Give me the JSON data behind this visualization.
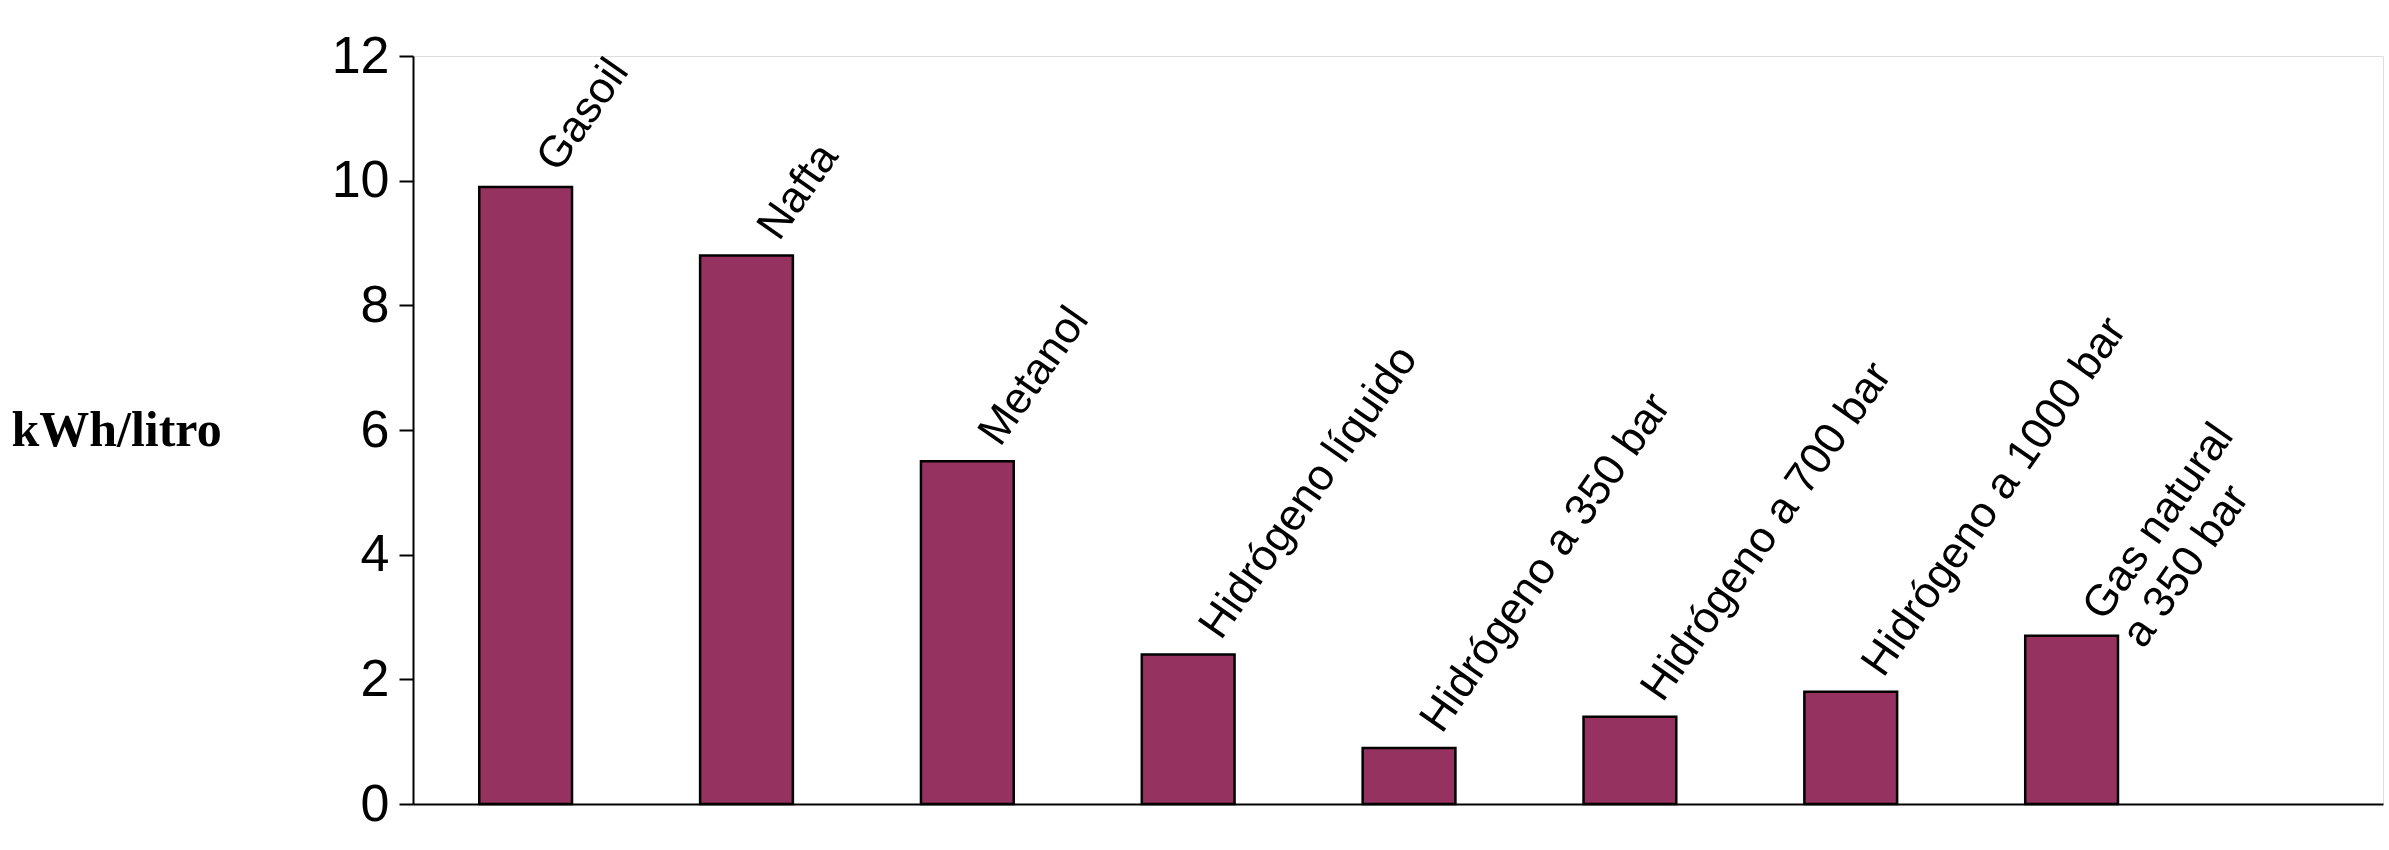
{
  "chart_data": {
    "type": "bar",
    "ylabel": "kWh/litro",
    "categories": [
      null,
      null,
      null,
      null,
      null,
      null,
      null,
      null
    ],
    "values": [
      9.9,
      8.8,
      5.5,
      2.4,
      0.9,
      1.4,
      1.8,
      2.7
    ],
    "color": "#963260",
    "annotations": [
      "Gasoil",
      "Nafta",
      "Metanol",
      "Hidrógeno líquido",
      "Hidrógeno a 350 bar",
      "Hidrógeno a 700 bar",
      "Hidrógeno a 1000 bar",
      "Gas natural\na 350 bar"
    ],
    "ylim": [
      0,
      12
    ],
    "yticks": [
      0,
      2,
      4,
      6,
      8,
      10,
      12
    ],
    "grid": false,
    "tick_labels": "y"
  }
}
